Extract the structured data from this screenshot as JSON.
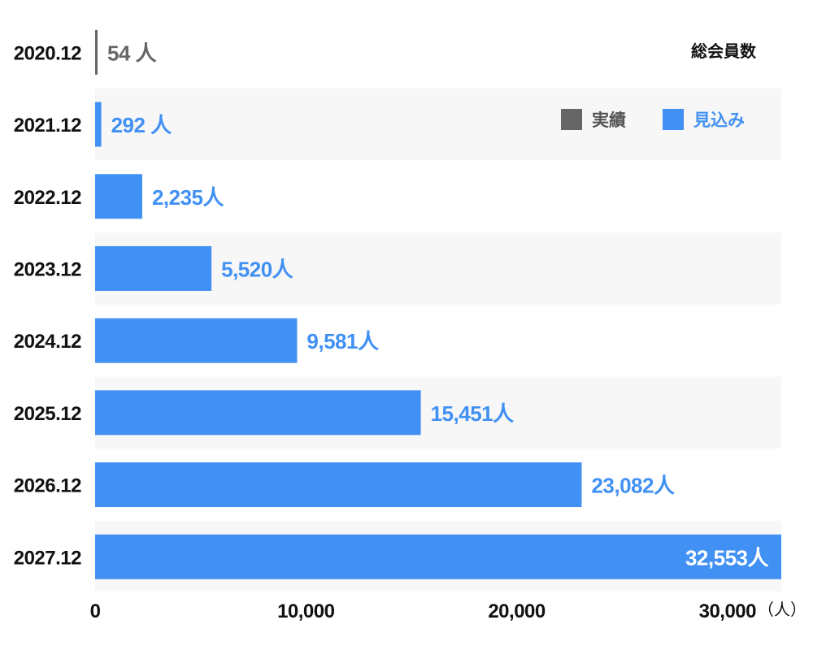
{
  "chart_data": {
    "type": "bar",
    "orientation": "horizontal",
    "title": "総会員数",
    "categories": [
      "2020.12",
      "2021.12",
      "2022.12",
      "2023.12",
      "2024.12",
      "2025.12",
      "2026.12",
      "2027.12"
    ],
    "values": [
      54,
      292,
      2235,
      5520,
      9581,
      15451,
      23082,
      32553
    ],
    "value_labels": [
      "54 人",
      "292 人",
      "2,235人",
      "5,520人",
      "9,581人",
      "15,451人",
      "23,082人",
      "32,553人"
    ],
    "series_type": [
      "actual",
      "forecast",
      "forecast",
      "forecast",
      "forecast",
      "forecast",
      "forecast",
      "forecast"
    ],
    "legend": [
      {
        "key": "actual",
        "label": "実績",
        "color": "#666666"
      },
      {
        "key": "forecast",
        "label": "見込み",
        "color": "#4190f3"
      }
    ],
    "legend_position": "top-right",
    "x_ticks": [
      0,
      10000,
      20000,
      30000
    ],
    "x_tick_labels": [
      "0",
      "10,000",
      "20,000",
      "30,000"
    ],
    "x_unit": "（人）",
    "xlim": [
      0,
      32553
    ],
    "row_banding": true,
    "band_color": "#f7f7f7",
    "inside_label_color": "#ffffff"
  }
}
